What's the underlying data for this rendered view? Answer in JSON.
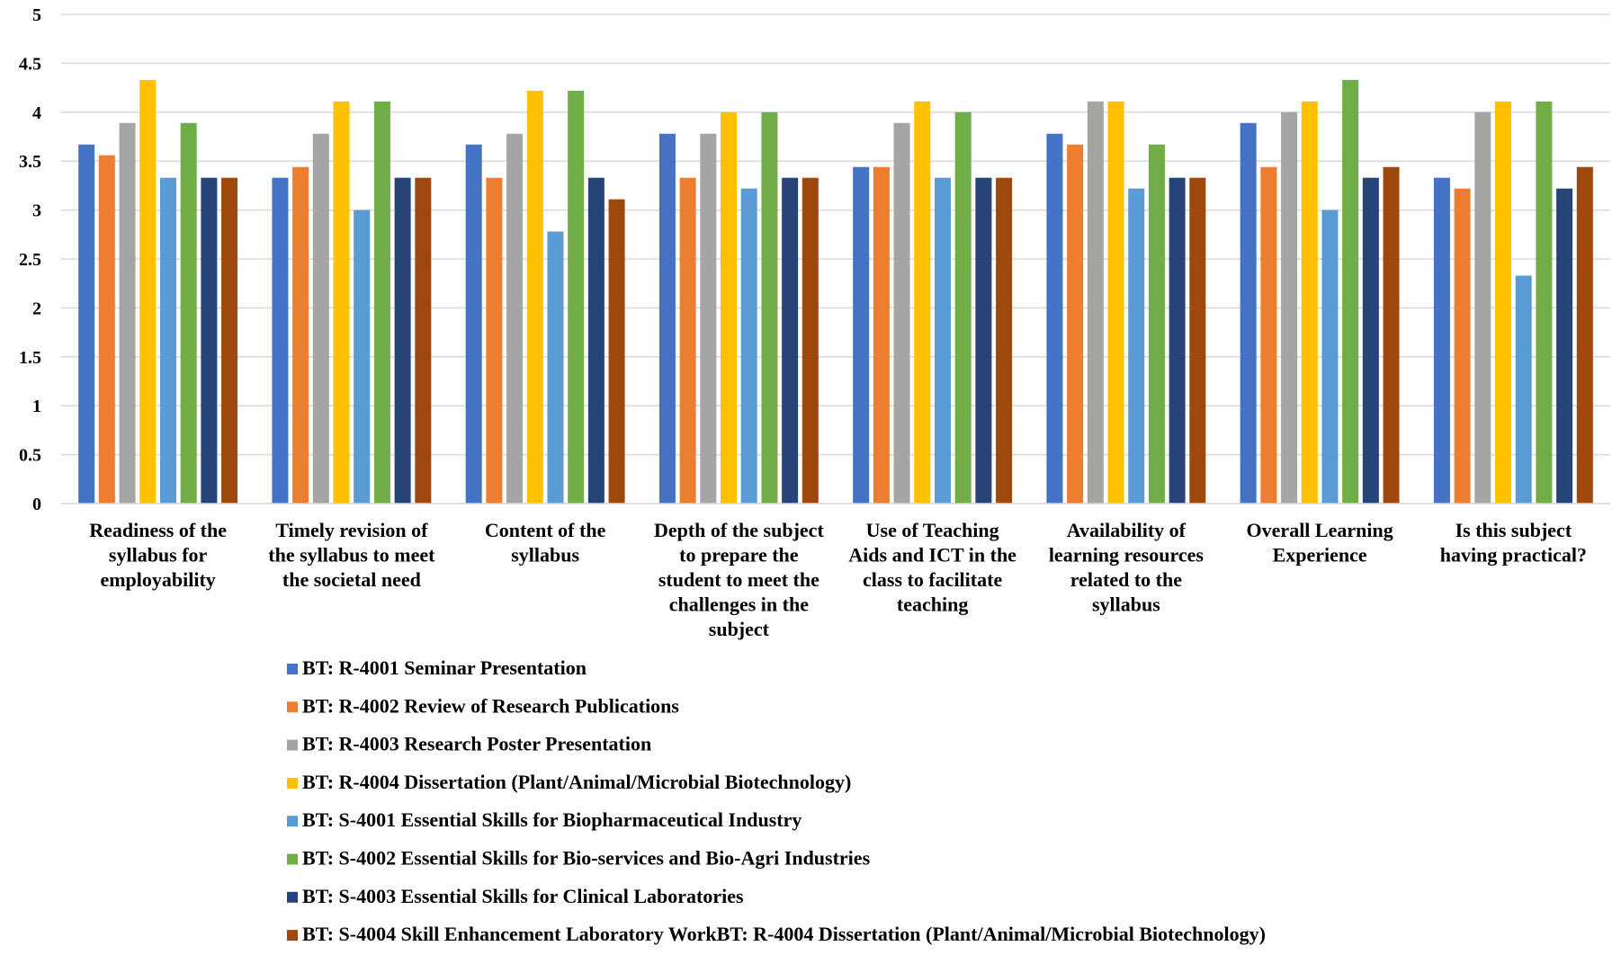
{
  "chart_data": {
    "type": "bar",
    "title": "",
    "xlabel": "",
    "ylabel": "",
    "ylim": [
      0,
      5
    ],
    "yticks": [
      "0",
      "0.5",
      "1",
      "1.5",
      "2",
      "2.5",
      "3",
      "3.5",
      "4",
      "4.5",
      "5"
    ],
    "grid": true,
    "legend_position": "bottom",
    "categories": [
      [
        "Readiness of the",
        "syllabus for",
        "employability"
      ],
      [
        "Timely revision of",
        "the syllabus to meet",
        "the societal need"
      ],
      [
        "Content of the",
        "syllabus"
      ],
      [
        "Depth of the subject",
        "to prepare the",
        "student to meet the",
        "challenges in the",
        "subject"
      ],
      [
        "Use of Teaching",
        "Aids and ICT in the",
        "class to facilitate",
        "teaching"
      ],
      [
        "Availability of",
        "learning resources",
        "related to the",
        "syllabus"
      ],
      [
        "Overall Learning",
        "Experience"
      ],
      [
        "Is this subject",
        "having practical?"
      ]
    ],
    "series": [
      {
        "name": "BT: R-4001 Seminar Presentation",
        "color": "#4472C4",
        "values": [
          3.67,
          3.33,
          3.67,
          3.78,
          3.44,
          3.78,
          3.89,
          3.33
        ]
      },
      {
        "name": "BT: R-4002 Review of Research Publications",
        "color": "#ED7D31",
        "values": [
          3.56,
          3.44,
          3.33,
          3.33,
          3.44,
          3.67,
          3.44,
          3.22
        ]
      },
      {
        "name": "BT: R-4003 Research Poster Presentation",
        "color": "#A5A5A5",
        "values": [
          3.89,
          3.78,
          3.78,
          3.78,
          3.89,
          4.11,
          4.0,
          4.0
        ]
      },
      {
        "name": "BT: R-4004 Dissertation (Plant/Animal/Microbial Biotechnology)",
        "color": "#FFC000",
        "values": [
          4.33,
          4.11,
          4.22,
          4.0,
          4.11,
          4.11,
          4.11,
          4.11
        ]
      },
      {
        "name": "BT: S-4001 Essential Skills for Biopharmaceutical Industry",
        "color": "#5B9BD5",
        "values": [
          3.33,
          3.0,
          2.78,
          3.22,
          3.33,
          3.22,
          3.0,
          2.33
        ]
      },
      {
        "name": "BT: S-4002 Essential Skills for Bio-services and Bio-Agri Industries",
        "color": "#70AD47",
        "values": [
          3.89,
          4.11,
          4.22,
          4.0,
          4.0,
          3.67,
          4.33,
          4.11
        ]
      },
      {
        "name": "BT: S-4003 Essential Skills for Clinical Laboratories",
        "color": "#264478",
        "values": [
          3.33,
          3.33,
          3.33,
          3.33,
          3.33,
          3.33,
          3.33,
          3.22
        ]
      },
      {
        "name": "BT: S-4004 Skill Enhancement Laboratory WorkBT: R-4004 Dissertation (Plant/Animal/Microbial Biotechnology)",
        "color": "#9E480E",
        "values": [
          3.33,
          3.33,
          3.11,
          3.33,
          3.33,
          3.33,
          3.44,
          3.44
        ]
      }
    ]
  }
}
